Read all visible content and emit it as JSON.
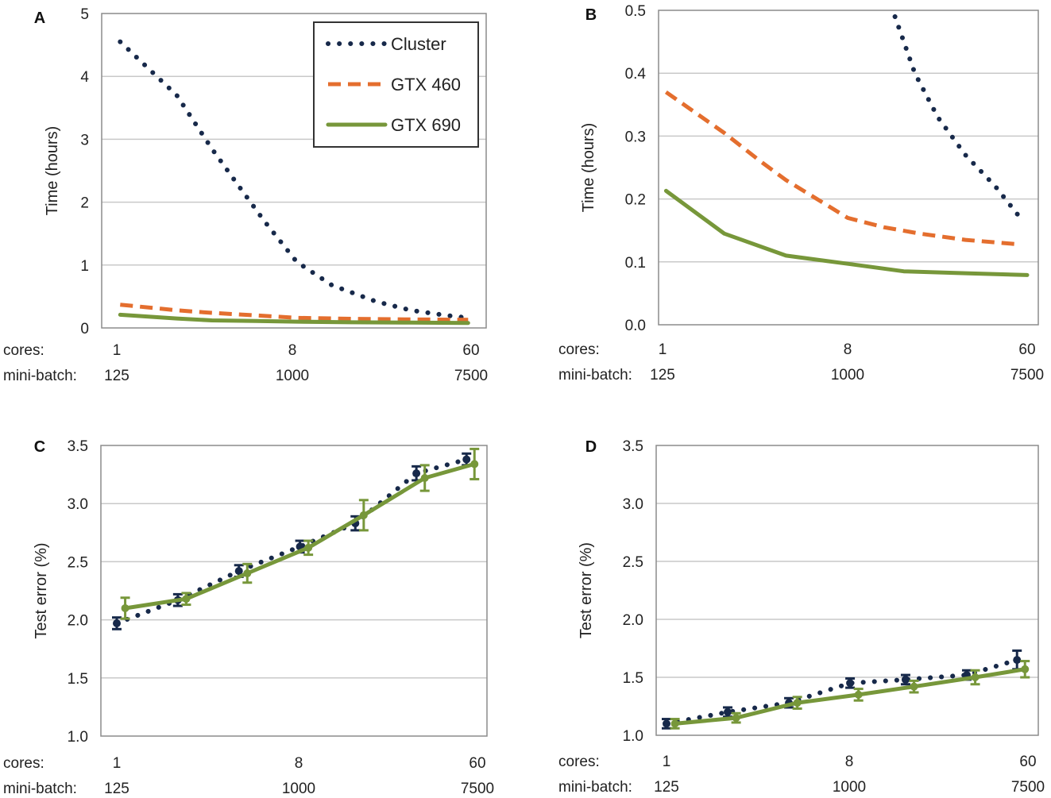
{
  "colors": {
    "cluster": "#17294a",
    "gtx460": "#e46e2e",
    "gtx690": "#77973a",
    "grid": "#c9c9c9",
    "frame": "#8c8c8c"
  },
  "chart_data": [
    {
      "panel": "A",
      "type": "line",
      "ylabel": "Time (hours)",
      "ylim": [
        0,
        5
      ],
      "yticks": [
        "0",
        "1",
        "2",
        "3",
        "4",
        "5"
      ],
      "x_rows": [
        {
          "label": "cores:",
          "ticks": [
            "1",
            "8",
            "60"
          ]
        },
        {
          "label": "mini-batch:",
          "ticks": [
            "125",
            "1000",
            "7500"
          ]
        }
      ],
      "legend": {
        "position": "top-right",
        "entries": [
          "Cluster",
          "GTX 460",
          "GTX 690"
        ]
      },
      "series": [
        {
          "name": "Cluster",
          "style": "dotted",
          "x": [
            1.04,
            2,
            3,
            4,
            5.5,
            8,
            12,
            20,
            30,
            45,
            58
          ],
          "values": [
            4.55,
            3.7,
            2.85,
            2.3,
            1.7,
            1.05,
            0.68,
            0.42,
            0.28,
            0.2,
            0.16
          ]
        },
        {
          "name": "GTX 460",
          "style": "dashed",
          "x": [
            1.04,
            2,
            3,
            5,
            8,
            15,
            30,
            58
          ],
          "values": [
            0.37,
            0.28,
            0.24,
            0.2,
            0.16,
            0.145,
            0.135,
            0.13
          ]
        },
        {
          "name": "GTX 690",
          "style": "solid",
          "x": [
            1.04,
            2,
            3,
            5,
            8,
            15,
            30,
            58
          ],
          "values": [
            0.21,
            0.15,
            0.12,
            0.11,
            0.1,
            0.09,
            0.085,
            0.08
          ]
        }
      ]
    },
    {
      "panel": "B",
      "type": "line",
      "ylabel": "Time (hours)",
      "ylim": [
        0,
        0.5
      ],
      "yticks": [
        "0.0",
        "0.1",
        "0.2",
        "0.3",
        "0.4",
        "0.5"
      ],
      "x_rows": [
        {
          "label": "cores:",
          "ticks": [
            "1",
            "8",
            "60"
          ]
        },
        {
          "label": "mini-batch:",
          "ticks": [
            "125",
            "1000",
            "7500"
          ]
        }
      ],
      "series": [
        {
          "name": "Cluster",
          "style": "dotted",
          "x": [
            13.6,
            17,
            22,
            30,
            42,
            54
          ],
          "values": [
            0.49,
            0.4,
            0.33,
            0.27,
            0.22,
            0.175
          ]
        },
        {
          "name": "GTX 460",
          "style": "dashed",
          "x": [
            1.04,
            2,
            3,
            4,
            6,
            8,
            12,
            18,
            30,
            54
          ],
          "values": [
            0.37,
            0.305,
            0.26,
            0.23,
            0.195,
            0.17,
            0.155,
            0.145,
            0.135,
            0.128
          ]
        },
        {
          "name": "GTX 690",
          "style": "solid",
          "x": [
            1.04,
            2,
            4,
            8,
            15,
            30,
            60
          ],
          "values": [
            0.213,
            0.145,
            0.11,
            0.097,
            0.085,
            0.082,
            0.079
          ]
        }
      ]
    },
    {
      "panel": "C",
      "type": "line",
      "ylabel": "Test error (%)",
      "ylim": [
        1.0,
        3.5
      ],
      "yticks": [
        "1.0",
        "1.5",
        "2.0",
        "2.5",
        "3.0",
        "3.5"
      ],
      "x_rows": [
        {
          "label": "cores:",
          "ticks": [
            "1",
            "8",
            "60"
          ]
        },
        {
          "label": "mini-batch:",
          "ticks": [
            "125",
            "1000",
            "7500"
          ]
        }
      ],
      "series": [
        {
          "name": "Cluster",
          "style": "dotted",
          "x": [
            1,
            2,
            4,
            8,
            15,
            30,
            53
          ],
          "values": [
            1.97,
            2.17,
            2.42,
            2.63,
            2.83,
            3.26,
            3.38
          ],
          "err": [
            0.05,
            0.05,
            0.05,
            0.05,
            0.06,
            0.06,
            0.05
          ]
        },
        {
          "name": "GTX 690",
          "style": "solid",
          "x": [
            1.1,
            2.2,
            4.4,
            8.8,
            16.5,
            33,
            58
          ],
          "values": [
            2.1,
            2.18,
            2.4,
            2.62,
            2.9,
            3.22,
            3.34
          ],
          "err": [
            0.09,
            0.05,
            0.08,
            0.06,
            0.13,
            0.11,
            0.13
          ]
        }
      ]
    },
    {
      "panel": "D",
      "type": "line",
      "ylabel": "Test error (%)",
      "ylim": [
        1.0,
        3.5
      ],
      "yticks": [
        "1.0",
        "1.5",
        "2.0",
        "2.5",
        "3.0",
        "3.5"
      ],
      "x_rows": [
        {
          "label": "cores:",
          "ticks": [
            "1",
            "8",
            "60"
          ]
        },
        {
          "label": "mini-batch:",
          "ticks": [
            "125",
            "1000",
            "7500"
          ]
        }
      ],
      "series": [
        {
          "name": "Cluster",
          "style": "dotted",
          "x": [
            1,
            2,
            4,
            8,
            15,
            30,
            53
          ],
          "values": [
            1.1,
            1.2,
            1.28,
            1.45,
            1.48,
            1.52,
            1.65
          ],
          "err": [
            0.04,
            0.04,
            0.04,
            0.04,
            0.04,
            0.04,
            0.08
          ]
        },
        {
          "name": "GTX 690",
          "style": "solid",
          "x": [
            1.1,
            2.2,
            4.4,
            8.8,
            16.5,
            33,
            58
          ],
          "values": [
            1.1,
            1.15,
            1.28,
            1.35,
            1.42,
            1.5,
            1.57
          ],
          "err": [
            0.04,
            0.04,
            0.05,
            0.05,
            0.05,
            0.06,
            0.07
          ]
        }
      ]
    }
  ]
}
